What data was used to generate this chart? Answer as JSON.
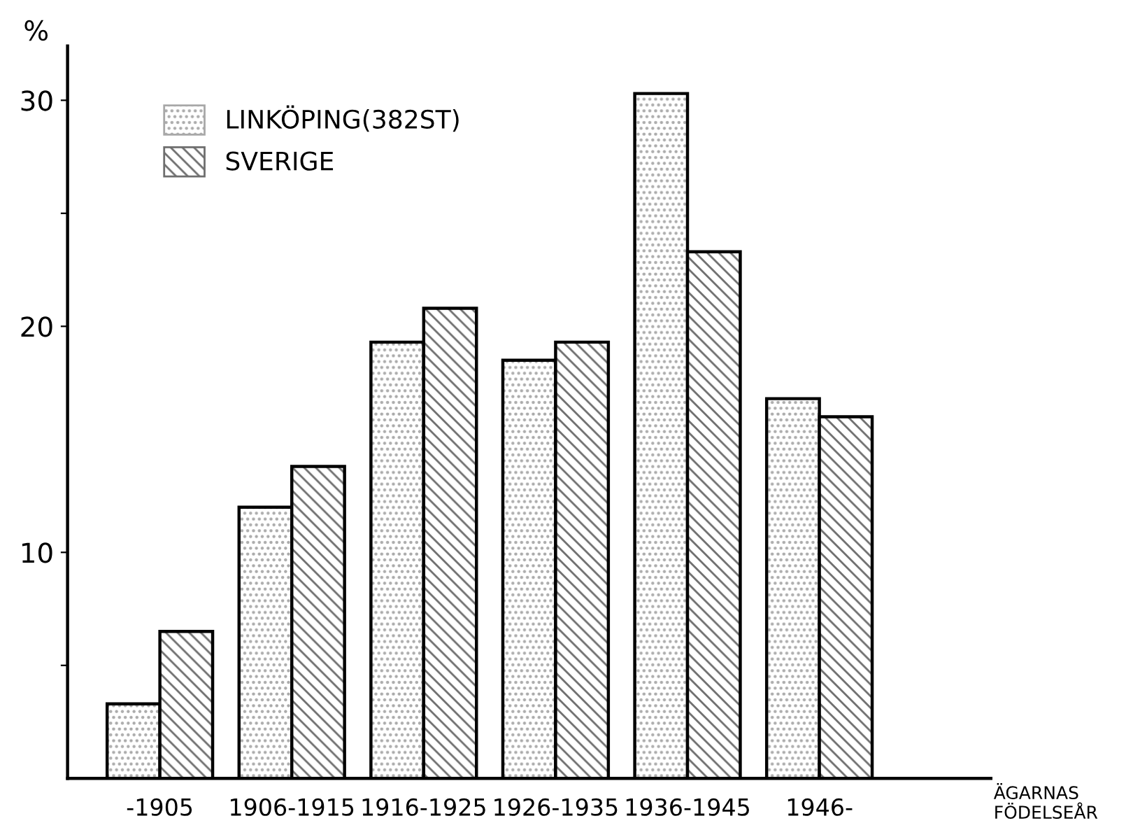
{
  "chart_data": {
    "type": "bar",
    "ylabel": "%",
    "xlabel": "ÄGARNAS\nFÖDELSEÅR",
    "categories": [
      "-1905",
      "1906-1915",
      "1916-1925",
      "1926-1935",
      "1936-1945",
      "1946-"
    ],
    "series": [
      {
        "name": "LINKÖPING(382ST)",
        "color": "#a8a8a8",
        "values": [
          3.3,
          12.0,
          19.3,
          18.5,
          30.3,
          16.8
        ]
      },
      {
        "name": "SVERIGE",
        "color": "#6e6e6e",
        "values": [
          6.5,
          13.8,
          20.8,
          19.3,
          23.3,
          16.0
        ]
      }
    ],
    "ylim": [
      0,
      32.4
    ],
    "yticks": [
      {
        "value": 5,
        "label": null
      },
      10,
      20,
      {
        "value": 25,
        "label": null
      },
      30
    ],
    "grid": false,
    "legend": "top left"
  }
}
